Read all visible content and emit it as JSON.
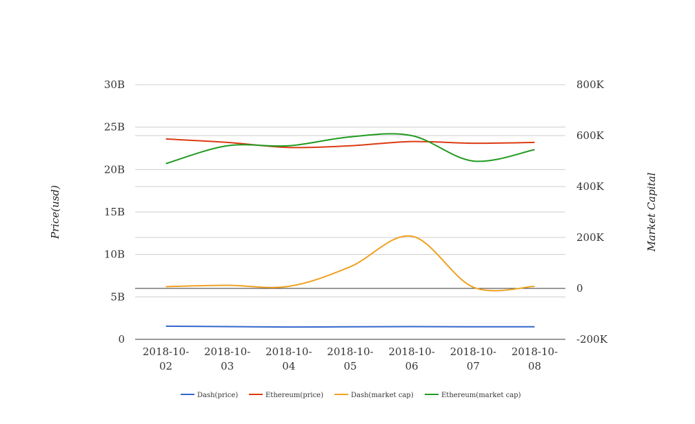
{
  "chart_data": {
    "type": "line",
    "categories": [
      "2018-10-02",
      "2018-10-03",
      "2018-10-04",
      "2018-10-05",
      "2018-10-06",
      "2018-10-07",
      "2018-10-08"
    ],
    "category_lines": [
      [
        "2018-10-",
        "02"
      ],
      [
        "2018-10-",
        "03"
      ],
      [
        "2018-10-",
        "04"
      ],
      [
        "2018-10-",
        "05"
      ],
      [
        "2018-10-",
        "06"
      ],
      [
        "2018-10-",
        "07"
      ],
      [
        "2018-10-",
        "08"
      ]
    ],
    "ylabel_left": "Price(usd)",
    "ylabel_right": "Market Capital",
    "y_left": {
      "min": 0,
      "max": 30000000000,
      "ticks": [
        0,
        5000000000,
        10000000000,
        15000000000,
        20000000000,
        25000000000,
        30000000000
      ],
      "tick_labels": [
        "0",
        "5B",
        "10B",
        "15B",
        "20B",
        "25B",
        "30B"
      ]
    },
    "y_right": {
      "min": -200000,
      "max": 800000,
      "ticks": [
        -200000,
        0,
        200000,
        400000,
        600000,
        800000
      ],
      "tick_labels": [
        "-200K",
        "0",
        "200K",
        "400K",
        "600K",
        "800K"
      ]
    },
    "legend_position": "bottom",
    "grid": true,
    "series": [
      {
        "name": "Dash(price)",
        "axis": "left",
        "color": "#3366cc",
        "values": [
          1550000000,
          1500000000,
          1450000000,
          1480000000,
          1500000000,
          1480000000,
          1480000000
        ]
      },
      {
        "name": "Ethereum(price)",
        "axis": "left",
        "color": "#dc3912",
        "values": [
          23600000000,
          23200000000,
          22600000000,
          22800000000,
          23300000000,
          23100000000,
          23200000000
        ]
      },
      {
        "name": "Dash(market cap)",
        "axis": "right",
        "color": "#f0a020",
        "values": [
          7000,
          12000,
          8000,
          85000,
          205000,
          5000,
          8000
        ]
      },
      {
        "name": "Ethereum(market cap)",
        "axis": "right",
        "color": "#1f9a1f",
        "values": [
          490000,
          560000,
          560000,
          595000,
          600000,
          500000,
          545000
        ]
      }
    ]
  }
}
